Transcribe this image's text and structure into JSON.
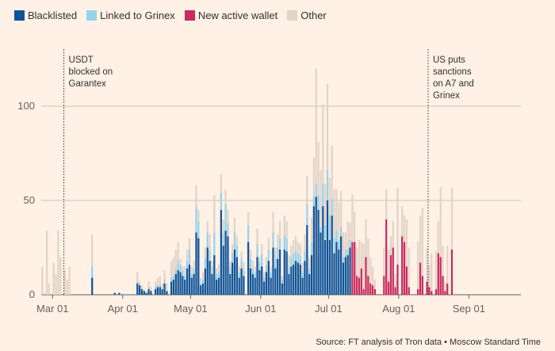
{
  "legend": [
    {
      "label": "Blacklisted",
      "color": "#0f5499"
    },
    {
      "label": "Linked to Grinex",
      "color": "#96d2ec"
    },
    {
      "label": "New active wallet",
      "color": "#c82b5f"
    },
    {
      "label": "Other",
      "color": "#e3d3c8"
    }
  ],
  "source": "Source: FT analysis of Tron data • Moscow Standard Time",
  "chart_data": {
    "type": "bar",
    "stacked": true,
    "grid": true,
    "ylim": [
      0,
      120
    ],
    "yticks": [
      0,
      50,
      100
    ],
    "x_start": "2025-02-24",
    "x_end": "2025-09-24",
    "xticks": [
      {
        "date": "2025-03-01",
        "label": "Mar 01"
      },
      {
        "date": "2025-04-01",
        "label": "Apr 01"
      },
      {
        "date": "2025-05-01",
        "label": "May 01"
      },
      {
        "date": "2025-06-01",
        "label": "Jun 01"
      },
      {
        "date": "2025-07-01",
        "label": "Jul 01"
      },
      {
        "date": "2025-08-01",
        "label": "Aug 01"
      },
      {
        "date": "2025-09-01",
        "label": "Sep 01"
      }
    ],
    "annotations": [
      {
        "date": "2025-03-06",
        "lines": [
          "USDT",
          "blocked on",
          "Garantex"
        ]
      },
      {
        "date": "2025-08-14",
        "lines": [
          "US puts",
          "sanctions",
          "on A7 and",
          "Grinex"
        ]
      }
    ],
    "series": [
      {
        "name": "Blacklisted",
        "color": "#0f5499",
        "values": [
          0,
          0,
          0,
          0,
          0,
          0,
          0,
          0,
          0,
          0,
          0,
          0,
          0,
          0,
          0,
          0,
          0,
          0,
          0,
          0,
          0,
          0,
          9,
          0,
          0,
          0,
          0,
          0,
          0,
          0,
          0,
          0,
          1,
          0,
          1,
          0,
          0,
          0,
          0,
          0,
          0,
          0,
          6,
          5,
          3,
          2,
          1,
          3,
          2,
          0,
          3,
          4,
          4,
          3,
          6,
          2,
          0,
          7,
          8,
          11,
          13,
          12,
          10,
          8,
          14,
          16,
          9,
          11,
          33,
          30,
          5,
          6,
          14,
          25,
          18,
          11,
          21,
          8,
          9,
          45,
          26,
          34,
          31,
          11,
          17,
          24,
          20,
          9,
          14,
          10,
          0,
          28,
          14,
          11,
          9,
          20,
          13,
          15,
          7,
          12,
          18,
          9,
          25,
          14,
          19,
          24,
          6,
          24,
          23,
          11,
          15,
          16,
          18,
          17,
          16,
          9,
          18,
          37,
          11,
          21,
          47,
          52,
          45,
          33,
          47,
          29,
          50,
          29,
          42,
          22,
          28,
          24,
          31,
          17,
          20,
          21,
          25,
          0,
          0,
          0,
          0,
          0,
          0,
          0,
          0,
          0,
          0,
          0,
          0,
          0,
          0,
          0,
          0,
          0,
          0,
          0,
          0,
          0,
          0,
          0,
          0,
          0,
          0,
          0,
          0,
          0,
          0,
          0,
          0,
          0,
          0,
          0,
          0,
          0,
          0,
          0,
          0,
          0,
          0,
          0,
          0,
          0,
          0,
          0,
          0
        ]
      },
      {
        "name": "Linked to Grinex",
        "color": "#96d2ec",
        "values": [
          0,
          0,
          0,
          0,
          0,
          0,
          0,
          0,
          0,
          0,
          0,
          0,
          0,
          0,
          0,
          0,
          0,
          0,
          0,
          0,
          0,
          0,
          6,
          0,
          0,
          0,
          0,
          0,
          0,
          0,
          0,
          0,
          0,
          0,
          0,
          0,
          0,
          0,
          0,
          0,
          0,
          0,
          1,
          0,
          0,
          0,
          0,
          1,
          0,
          0,
          1,
          1,
          1,
          0,
          2,
          0,
          0,
          2,
          2,
          3,
          5,
          4,
          3,
          2,
          4,
          8,
          2,
          3,
          14,
          9,
          1,
          2,
          5,
          8,
          6,
          4,
          12,
          3,
          3,
          9,
          7,
          14,
          7,
          4,
          5,
          9,
          6,
          3,
          5,
          3,
          0,
          9,
          5,
          3,
          3,
          7,
          4,
          6,
          2,
          4,
          6,
          3,
          8,
          5,
          6,
          6,
          2,
          8,
          7,
          4,
          5,
          6,
          5,
          5,
          5,
          3,
          5,
          11,
          3,
          7,
          5,
          7,
          8,
          3,
          12,
          8,
          16,
          13,
          9,
          8,
          6,
          5,
          5,
          3,
          4,
          3,
          4,
          0,
          0,
          0,
          0,
          0,
          0,
          0,
          0,
          0,
          0,
          0,
          0,
          0,
          0,
          0,
          0,
          0,
          0,
          0,
          0,
          0,
          0,
          0,
          0,
          0,
          0,
          0,
          0,
          0,
          0,
          0,
          0,
          0,
          0,
          0,
          0,
          0,
          0,
          0,
          0,
          0,
          0,
          0,
          0,
          0,
          0,
          0,
          0
        ]
      },
      {
        "name": "New active wallet",
        "color": "#c82b5f",
        "values": [
          0,
          0,
          0,
          0,
          0,
          0,
          0,
          0,
          0,
          0,
          0,
          0,
          0,
          0,
          0,
          0,
          0,
          0,
          0,
          0,
          0,
          0,
          0,
          0,
          0,
          0,
          0,
          0,
          0,
          0,
          0,
          0,
          0,
          0,
          0,
          0,
          0,
          0,
          0,
          0,
          0,
          0,
          0,
          0,
          0,
          0,
          0,
          0,
          0,
          0,
          0,
          0,
          0,
          0,
          0,
          0,
          0,
          0,
          0,
          0,
          0,
          0,
          0,
          0,
          0,
          0,
          0,
          0,
          0,
          0,
          0,
          0,
          0,
          0,
          0,
          0,
          0,
          0,
          0,
          0,
          0,
          0,
          0,
          0,
          0,
          0,
          0,
          0,
          0,
          0,
          0,
          0,
          0,
          0,
          0,
          0,
          0,
          0,
          0,
          0,
          0,
          0,
          0,
          0,
          0,
          0,
          0,
          0,
          0,
          0,
          0,
          0,
          0,
          0,
          0,
          0,
          0,
          0,
          0,
          0,
          0,
          0,
          0,
          0,
          0,
          0,
          0,
          0,
          0,
          0,
          0,
          0,
          0,
          0,
          0,
          0,
          0,
          28,
          28,
          10,
          9,
          14,
          3,
          20,
          10,
          6,
          5,
          3,
          0,
          0,
          0,
          10,
          40,
          7,
          21,
          25,
          4,
          16,
          0,
          31,
          28,
          15,
          4,
          0,
          0,
          0,
          3,
          17,
          10,
          0,
          7,
          4,
          2,
          0,
          3,
          22,
          20,
          10,
          2,
          6,
          0,
          24,
          0
        ]
      },
      {
        "name": "Other",
        "color": "#e3d3c8",
        "values": [
          15,
          0,
          34,
          6,
          0,
          17,
          11,
          34,
          20,
          0,
          13,
          8,
          15,
          0,
          0,
          0,
          0,
          0,
          0,
          0,
          0,
          0,
          17,
          0,
          0,
          0,
          0,
          0,
          0,
          0,
          0,
          0,
          0,
          0,
          0,
          0,
          0,
          0,
          0,
          0,
          0,
          0,
          5,
          2,
          2,
          1,
          1,
          3,
          2,
          0,
          3,
          4,
          5,
          3,
          5,
          4,
          0,
          9,
          10,
          10,
          10,
          3,
          2,
          5,
          6,
          6,
          4,
          4,
          11,
          6,
          3,
          4,
          6,
          6,
          8,
          3,
          20,
          3,
          4,
          10,
          7,
          8,
          7,
          3,
          5,
          8,
          5,
          3,
          4,
          4,
          0,
          7,
          5,
          4,
          3,
          8,
          3,
          6,
          3,
          4,
          6,
          3,
          11,
          6,
          7,
          9,
          2,
          10,
          9,
          6,
          6,
          7,
          8,
          6,
          6,
          5,
          9,
          15,
          6,
          13,
          21,
          61,
          28,
          30,
          42,
          22,
          46,
          20,
          28,
          26,
          22,
          20,
          19,
          13,
          9,
          15,
          9,
          25,
          16,
          15,
          20,
          14,
          24,
          20,
          20,
          14,
          10,
          5,
          0,
          0,
          0,
          15,
          16,
          17,
          10,
          14,
          7,
          41,
          0,
          16,
          14,
          25,
          21,
          0,
          0,
          0,
          25,
          25,
          36,
          0,
          18,
          12,
          20,
          0,
          20,
          17,
          37,
          16,
          5,
          20,
          0,
          33,
          0
        ]
      }
    ]
  }
}
